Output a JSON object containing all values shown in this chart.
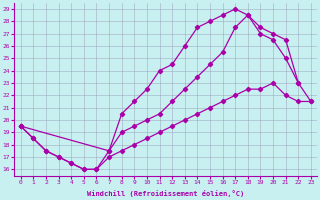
{
  "xlabel": "Windchill (Refroidissement éolien,°C)",
  "bg_color": "#c8f0f0",
  "line_color": "#aa00aa",
  "xlim": [
    -0.5,
    23.5
  ],
  "ylim": [
    15.5,
    29.5
  ],
  "xticks": [
    0,
    1,
    2,
    3,
    4,
    5,
    6,
    7,
    8,
    9,
    10,
    11,
    12,
    13,
    14,
    15,
    16,
    17,
    18,
    19,
    20,
    21,
    22,
    23
  ],
  "yticks": [
    16,
    17,
    18,
    19,
    20,
    21,
    22,
    23,
    24,
    25,
    26,
    27,
    28,
    29
  ],
  "line1_x": [
    0,
    1,
    2,
    3,
    4,
    5,
    6,
    7,
    8,
    9,
    10,
    11,
    12,
    13,
    14,
    15,
    16,
    17,
    18,
    19,
    20,
    21,
    22
  ],
  "line1_y": [
    19.5,
    18.5,
    17.5,
    17.0,
    16.5,
    16.0,
    16.0,
    17.5,
    20.5,
    21.5,
    22.5,
    24.0,
    24.5,
    26.0,
    27.5,
    28.0,
    28.5,
    29.0,
    28.5,
    27.0,
    26.5,
    25.0,
    23.0
  ],
  "line2_x": [
    0,
    1,
    2,
    3,
    4,
    5,
    6,
    7,
    8,
    9,
    10,
    11,
    12,
    13,
    14,
    15,
    16,
    17,
    18,
    19,
    20,
    21,
    22,
    23
  ],
  "line2_y": [
    19.5,
    18.5,
    17.5,
    17.0,
    16.5,
    16.0,
    16.0,
    17.0,
    17.5,
    18.0,
    18.5,
    19.0,
    19.5,
    20.0,
    20.5,
    21.0,
    21.5,
    22.0,
    22.5,
    22.5,
    23.0,
    22.0,
    21.5,
    21.5
  ],
  "line3_x": [
    0,
    7,
    8,
    9,
    10,
    11,
    12,
    13,
    14,
    15,
    16,
    17,
    18,
    19,
    20,
    21,
    22,
    23
  ],
  "line3_y": [
    19.5,
    17.5,
    19.0,
    19.5,
    20.0,
    20.5,
    21.5,
    22.5,
    23.5,
    24.5,
    25.5,
    27.5,
    28.5,
    27.5,
    27.0,
    26.5,
    23.0,
    21.5
  ]
}
